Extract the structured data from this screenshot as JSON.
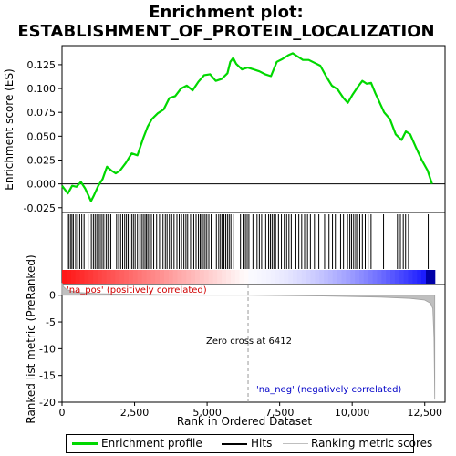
{
  "chart_data": {
    "type": "line",
    "title_line1": "Enrichment plot:",
    "title_line2": "ESTABLISHMENT_OF_PROTEIN_LOCALIZATION",
    "top_panel": {
      "ylabel": "Enrichment score (ES)",
      "ylim": [
        -0.03,
        0.145
      ],
      "yticks": [
        -0.025,
        0.0,
        0.025,
        0.05,
        0.075,
        0.1,
        0.125
      ],
      "ytick_labels": [
        "-0.025",
        "0.000",
        "0.025",
        "0.050",
        "0.075",
        "0.100",
        "0.125"
      ],
      "series_color": "#00d800",
      "x": [
        0,
        200,
        350,
        500,
        650,
        800,
        1000,
        1100,
        1250,
        1400,
        1550,
        1700,
        1850,
        2000,
        2200,
        2400,
        2600,
        2800,
        2950,
        3100,
        3300,
        3500,
        3700,
        3900,
        4100,
        4300,
        4500,
        4700,
        4900,
        5100,
        5300,
        5500,
        5700,
        5800,
        5900,
        6000,
        6200,
        6400,
        6600,
        6800,
        7000,
        7200,
        7400,
        7600,
        7800,
        7950,
        8100,
        8300,
        8500,
        8700,
        8900,
        9100,
        9300,
        9500,
        9700,
        9850,
        10000,
        10200,
        10350,
        10500,
        10650,
        10800,
        10950,
        11100,
        11300,
        11500,
        11700,
        11850,
        12000,
        12200,
        12400,
        12600,
        12750
      ],
      "es": [
        -0.002,
        -0.01,
        -0.002,
        -0.003,
        0.002,
        -0.005,
        -0.018,
        -0.012,
        -0.002,
        0.005,
        0.018,
        0.014,
        0.011,
        0.014,
        0.022,
        0.032,
        0.03,
        0.048,
        0.06,
        0.068,
        0.074,
        0.078,
        0.09,
        0.092,
        0.1,
        0.103,
        0.098,
        0.107,
        0.114,
        0.115,
        0.108,
        0.11,
        0.116,
        0.128,
        0.132,
        0.126,
        0.12,
        0.122,
        0.12,
        0.118,
        0.115,
        0.113,
        0.128,
        0.131,
        0.135,
        0.137,
        0.134,
        0.13,
        0.13,
        0.127,
        0.124,
        0.113,
        0.103,
        0.099,
        0.09,
        0.085,
        0.093,
        0.102,
        0.108,
        0.105,
        0.106,
        0.095,
        0.085,
        0.075,
        0.068,
        0.052,
        0.046,
        0.055,
        0.052,
        0.038,
        0.025,
        0.014,
        0.0
      ]
    },
    "hits": [
      180,
      230,
      290,
      340,
      390,
      470,
      540,
      610,
      680,
      760,
      900,
      1010,
      1080,
      1140,
      1200,
      1260,
      1320,
      1380,
      1440,
      1520,
      1580,
      1620,
      1680,
      1880,
      1950,
      2020,
      2090,
      2160,
      2220,
      2280,
      2340,
      2400,
      2460,
      2520,
      2600,
      2680,
      2740,
      2800,
      2860,
      2910,
      2960,
      3020,
      3080,
      3160,
      3260,
      3360,
      3480,
      3560,
      3620,
      3700,
      3780,
      3860,
      3960,
      4040,
      4120,
      4200,
      4270,
      4330,
      4430,
      4540,
      4620,
      4700,
      4760,
      4810,
      4870,
      4930,
      4990,
      5060,
      5140,
      5320,
      5400,
      5460,
      5520,
      5580,
      5640,
      5700,
      5760,
      5820,
      5900,
      6150,
      6240,
      6320,
      6380,
      6440,
      6580,
      6720,
      6800,
      6880,
      7020,
      7120,
      7180,
      7240,
      7300,
      7360,
      7460,
      7560,
      7660,
      7740,
      7820,
      7900,
      8060,
      8160,
      8260,
      8360,
      8460,
      8560,
      8700,
      8850,
      9050,
      9200,
      9320,
      9420,
      9600,
      9700,
      9840,
      9920,
      9980,
      10050,
      10120,
      10180,
      10260,
      10350,
      10450,
      10550,
      10650,
      11080,
      11560,
      11660,
      11760,
      11840,
      11940,
      12620
    ],
    "bottom_panel": {
      "ylabel": "Ranked list metric (PreRanked)",
      "ylim": [
        -20,
        2
      ],
      "yticks": [
        0,
        -5,
        -10,
        -15,
        -20
      ],
      "ytick_labels": [
        "0",
        "-5",
        "-10",
        "-15",
        "-20"
      ],
      "metric_x": [
        0,
        50,
        150,
        300,
        600,
        1200,
        2500,
        4000,
        6412,
        9000,
        11000,
        12000,
        12500,
        12700,
        12780,
        12820,
        12845
      ],
      "metric_y": [
        2.3,
        1.6,
        1.1,
        0.8,
        0.5,
        0.3,
        0.15,
        0.07,
        0.0,
        -0.15,
        -0.35,
        -0.6,
        -0.9,
        -1.5,
        -2.5,
        -8.0,
        -19.5
      ]
    },
    "xlabel": "Rank in Ordered Dataset",
    "xlim": [
      0,
      13200
    ],
    "xticks": [
      0,
      2500,
      5000,
      7500,
      10000,
      12500
    ],
    "xtick_labels": [
      "0",
      "2,500",
      "5,000",
      "7,500",
      "10,000",
      "12,500"
    ],
    "zero_cross_x": 6412,
    "n_genes": 12845,
    "annotations": {
      "pos_label": "'na_pos' (positively correlated)",
      "neg_label": "'na_neg' (negatively correlated)",
      "zero_cross_label": "Zero cross at 6412"
    },
    "legend": {
      "items": [
        {
          "label": "Enrichment profile",
          "color": "#00d800"
        },
        {
          "label": "Hits",
          "color": "#000000"
        },
        {
          "label": "Ranking metric scores",
          "color": "#bfbfbf"
        }
      ],
      "placement": "bottom"
    }
  }
}
